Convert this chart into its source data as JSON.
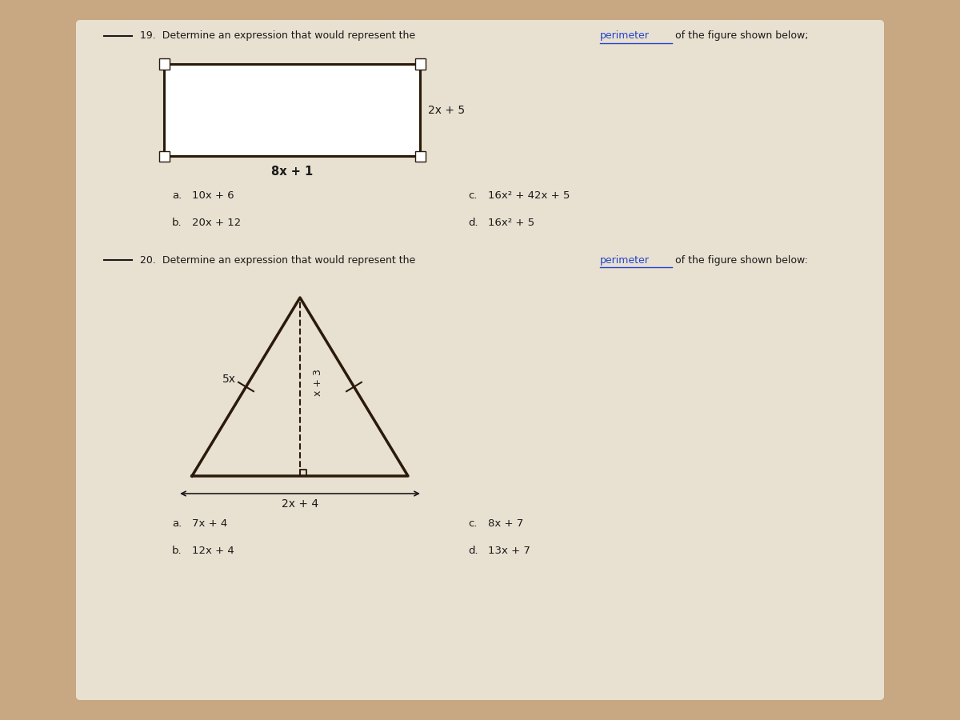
{
  "bg_color": "#c8a882",
  "paper_color": "#e8e0d0",
  "rect_label_bottom": "8x + 1",
  "rect_label_right": "2x + 5",
  "q19_choices_left": [
    [
      "a.",
      "10x + 6"
    ],
    [
      "b.",
      "20x + 12"
    ]
  ],
  "q19_choices_right": [
    [
      "c.",
      "16x² + 42x + 5"
    ],
    [
      "d.",
      "16x² + 5"
    ]
  ],
  "tri_label_left": "5x",
  "tri_label_height": "x + 3",
  "tri_label_bottom": "2x + 4",
  "q20_choices_left": [
    [
      "a.",
      "7x + 4"
    ],
    [
      "b.",
      "12x + 4"
    ]
  ],
  "q20_choices_right": [
    [
      "c.",
      "8x + 7"
    ],
    [
      "d.",
      "13x + 7"
    ]
  ],
  "line_color": "#2a1a0a",
  "text_color": "#1a1a1a",
  "blue_color": "#2244cc",
  "title19_pre": "19.  Determine an expression that would represent the ",
  "title19_suf": " of the figure shown below;",
  "title20_pre": "20.  Determine an expression that would represent the ",
  "title20_suf": " of the figure shown below:",
  "perimeter_word": "perimeter"
}
